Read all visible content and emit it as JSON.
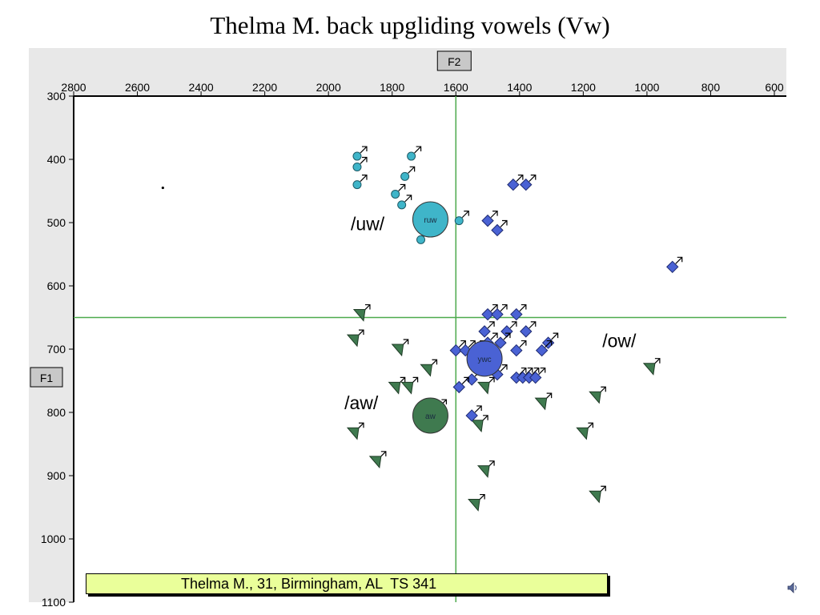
{
  "title": "Thelma M. back upgliding vowels (Vw)",
  "caption": "Thelma M., 31, Birmingham, AL  TS 341",
  "speaker_icon": "speaker-icon",
  "chart_data": {
    "type": "scatter",
    "title": "Thelma M. back upgliding vowels (Vw)",
    "xlabel": "F2",
    "ylabel": "F1",
    "xlim": [
      2800,
      600
    ],
    "ylim": [
      300,
      1100
    ],
    "x_reversed": true,
    "y_reversed": true,
    "x_ticks": [
      2800,
      2600,
      2400,
      2200,
      2000,
      1800,
      1600,
      1400,
      1200,
      1000,
      800,
      600
    ],
    "y_ticks": [
      300,
      400,
      500,
      600,
      700,
      800,
      900,
      1000,
      1100
    ],
    "crosshair": {
      "x": 1600,
      "y": 650,
      "color": "#4daa4d"
    },
    "background_color": "#e8e8e8",
    "grid": false,
    "stray_point": {
      "x": 2520,
      "y": 445
    },
    "series": [
      {
        "label": "/uw/",
        "marker": "circle",
        "color": "#3fb5c9",
        "mean": {
          "x": 1680,
          "y": 495,
          "label": "ruw"
        },
        "points": [
          {
            "x": 1910,
            "y": 395
          },
          {
            "x": 1910,
            "y": 412
          },
          {
            "x": 1910,
            "y": 440
          },
          {
            "x": 1740,
            "y": 395
          },
          {
            "x": 1760,
            "y": 427
          },
          {
            "x": 1790,
            "y": 455
          },
          {
            "x": 1770,
            "y": 472
          },
          {
            "x": 1700,
            "y": 490
          },
          {
            "x": 1590,
            "y": 497
          },
          {
            "x": 1710,
            "y": 527
          }
        ]
      },
      {
        "label": "/ow/",
        "marker": "diamond",
        "color": "#4a62d4",
        "mean": {
          "x": 1510,
          "y": 715,
          "label": "ywc"
        },
        "points": [
          {
            "x": 1420,
            "y": 440
          },
          {
            "x": 1380,
            "y": 440
          },
          {
            "x": 1500,
            "y": 497
          },
          {
            "x": 1470,
            "y": 512
          },
          {
            "x": 920,
            "y": 570
          },
          {
            "x": 1500,
            "y": 645
          },
          {
            "x": 1470,
            "y": 645
          },
          {
            "x": 1410,
            "y": 645
          },
          {
            "x": 1510,
            "y": 672
          },
          {
            "x": 1440,
            "y": 672
          },
          {
            "x": 1380,
            "y": 672
          },
          {
            "x": 1500,
            "y": 690
          },
          {
            "x": 1460,
            "y": 690
          },
          {
            "x": 1310,
            "y": 690
          },
          {
            "x": 1600,
            "y": 702
          },
          {
            "x": 1570,
            "y": 702
          },
          {
            "x": 1540,
            "y": 702
          },
          {
            "x": 1410,
            "y": 702
          },
          {
            "x": 1330,
            "y": 702
          },
          {
            "x": 1490,
            "y": 725
          },
          {
            "x": 1470,
            "y": 740
          },
          {
            "x": 1410,
            "y": 745
          },
          {
            "x": 1390,
            "y": 745
          },
          {
            "x": 1370,
            "y": 745
          },
          {
            "x": 1350,
            "y": 745
          },
          {
            "x": 1550,
            "y": 748
          },
          {
            "x": 1590,
            "y": 760
          },
          {
            "x": 1550,
            "y": 805
          }
        ]
      },
      {
        "label": "/aw/",
        "marker": "triangle",
        "color": "#3f7a4f",
        "mean": {
          "x": 1680,
          "y": 805,
          "label": "aw"
        },
        "points": [
          {
            "x": 1900,
            "y": 645
          },
          {
            "x": 1920,
            "y": 685
          },
          {
            "x": 1780,
            "y": 700
          },
          {
            "x": 1690,
            "y": 732
          },
          {
            "x": 1790,
            "y": 760
          },
          {
            "x": 1750,
            "y": 760
          },
          {
            "x": 1660,
            "y": 795
          },
          {
            "x": 1510,
            "y": 760
          },
          {
            "x": 1530,
            "y": 820
          },
          {
            "x": 1920,
            "y": 832
          },
          {
            "x": 1850,
            "y": 877
          },
          {
            "x": 1510,
            "y": 892
          },
          {
            "x": 1540,
            "y": 945
          },
          {
            "x": 1330,
            "y": 785
          },
          {
            "x": 1160,
            "y": 775
          },
          {
            "x": 1200,
            "y": 832
          },
          {
            "x": 1160,
            "y": 932
          },
          {
            "x": 990,
            "y": 730
          }
        ]
      }
    ],
    "annotations": [
      {
        "text": "/uw/",
        "x": 1930,
        "y": 512
      },
      {
        "text": "/ow/",
        "x": 1140,
        "y": 697
      },
      {
        "text": "/aw/",
        "x": 1950,
        "y": 795
      }
    ]
  }
}
